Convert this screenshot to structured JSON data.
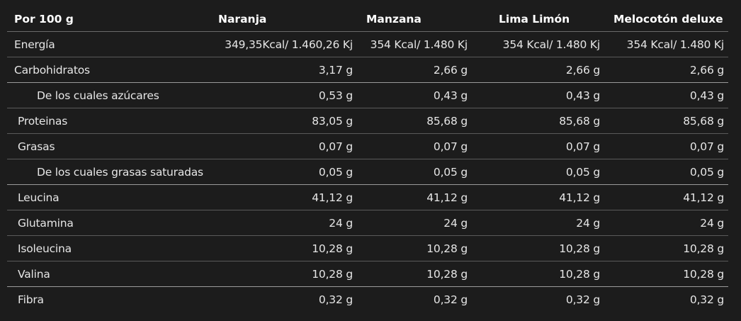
{
  "table": {
    "header": [
      "Por 100 g",
      "Naranja",
      "Manzana",
      "Lima Limón",
      "Melocotón deluxe"
    ],
    "rows": [
      [
        "Energía",
        "349,35Kcal/ 1.460,26 Kj",
        "354 Kcal/ 1.480 Kj",
        "354 Kcal/ 1.480 Kj",
        "354 Kcal/ 1.480 Kj"
      ],
      [
        "Carbohidratos",
        "3,17 g",
        "2,66 g",
        "2,66 g",
        "2,66 g"
      ],
      [
        "De los cuales azúcares",
        "0,53 g",
        "0,43 g",
        "0,43 g",
        "0,43 g"
      ],
      [
        "Proteinas",
        "83,05 g",
        "85,68 g",
        "85,68 g",
        "85,68 g"
      ],
      [
        "Grasas",
        "0,07 g",
        "0,07 g",
        "0,07 g",
        "0,07 g"
      ],
      [
        "De los cuales grasas saturadas",
        "0,05 g",
        "0,05 g",
        "0,05 g",
        "0,05 g"
      ],
      [
        "Leucina",
        "41,12 g",
        "41,12 g",
        "41,12 g",
        "41,12 g"
      ],
      [
        "Glutamina",
        "24 g",
        "24 g",
        "24 g",
        "24 g"
      ],
      [
        "Isoleucina",
        "10,28 g",
        "10,28 g",
        "10,28 g",
        "10,28 g"
      ],
      [
        "Valina",
        "10,28 g",
        "10,28 g",
        "10,28 g",
        "10,28 g"
      ],
      [
        "Fibra",
        "0,32 g",
        "0,32 g",
        "0,32 g",
        "0,32 g"
      ]
    ]
  }
}
